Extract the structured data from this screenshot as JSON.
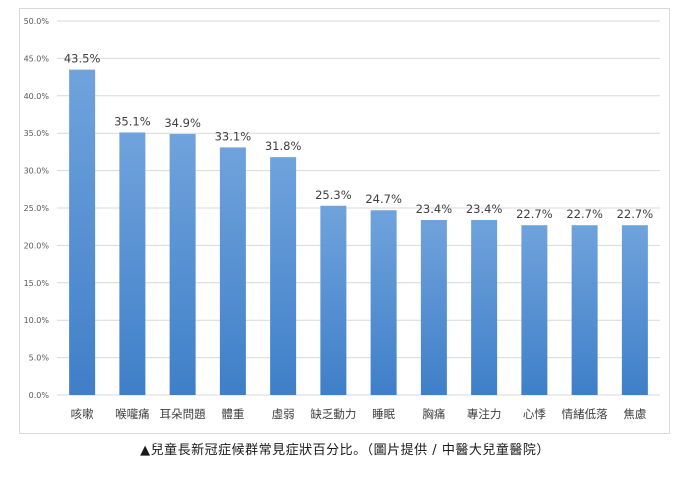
{
  "caption": "▲兒童長新冠症候群常見症狀百分比。（圖片提供 / 中醫大兒童醫院）",
  "chart_data": {
    "type": "bar",
    "categories": [
      "咳嗽",
      "喉嚨痛",
      "耳朵問題",
      "體重",
      "虛弱",
      "缺乏動力",
      "睡眠",
      "胸痛",
      "專注力",
      "心悸",
      "情緒低落",
      "焦慮"
    ],
    "values": [
      43.5,
      35.1,
      34.9,
      33.1,
      31.8,
      25.3,
      24.7,
      23.4,
      23.4,
      22.7,
      22.7,
      22.7
    ],
    "data_labels": [
      "43.5%",
      "35.1%",
      "34.9%",
      "33.1%",
      "31.8%",
      "25.3%",
      "24.7%",
      "23.4%",
      "23.4%",
      "22.7%",
      "22.7%",
      "22.7%"
    ],
    "yticks": [
      0,
      5,
      10,
      15,
      20,
      25,
      30,
      35,
      40,
      45,
      50
    ],
    "ytick_labels": [
      "0.0%",
      "5.0%",
      "10.0%",
      "15.0%",
      "20.0%",
      "25.0%",
      "30.0%",
      "35.0%",
      "40.0%",
      "45.0%",
      "50.0%"
    ],
    "ylim": [
      0,
      50
    ],
    "title": "",
    "xlabel": "",
    "ylabel": "",
    "grid": true,
    "bar_color_top": "#6fa3dc",
    "bar_color_bottom": "#3f7fc8",
    "label_color": "#404040",
    "grid_color": "#d9d9d9"
  }
}
